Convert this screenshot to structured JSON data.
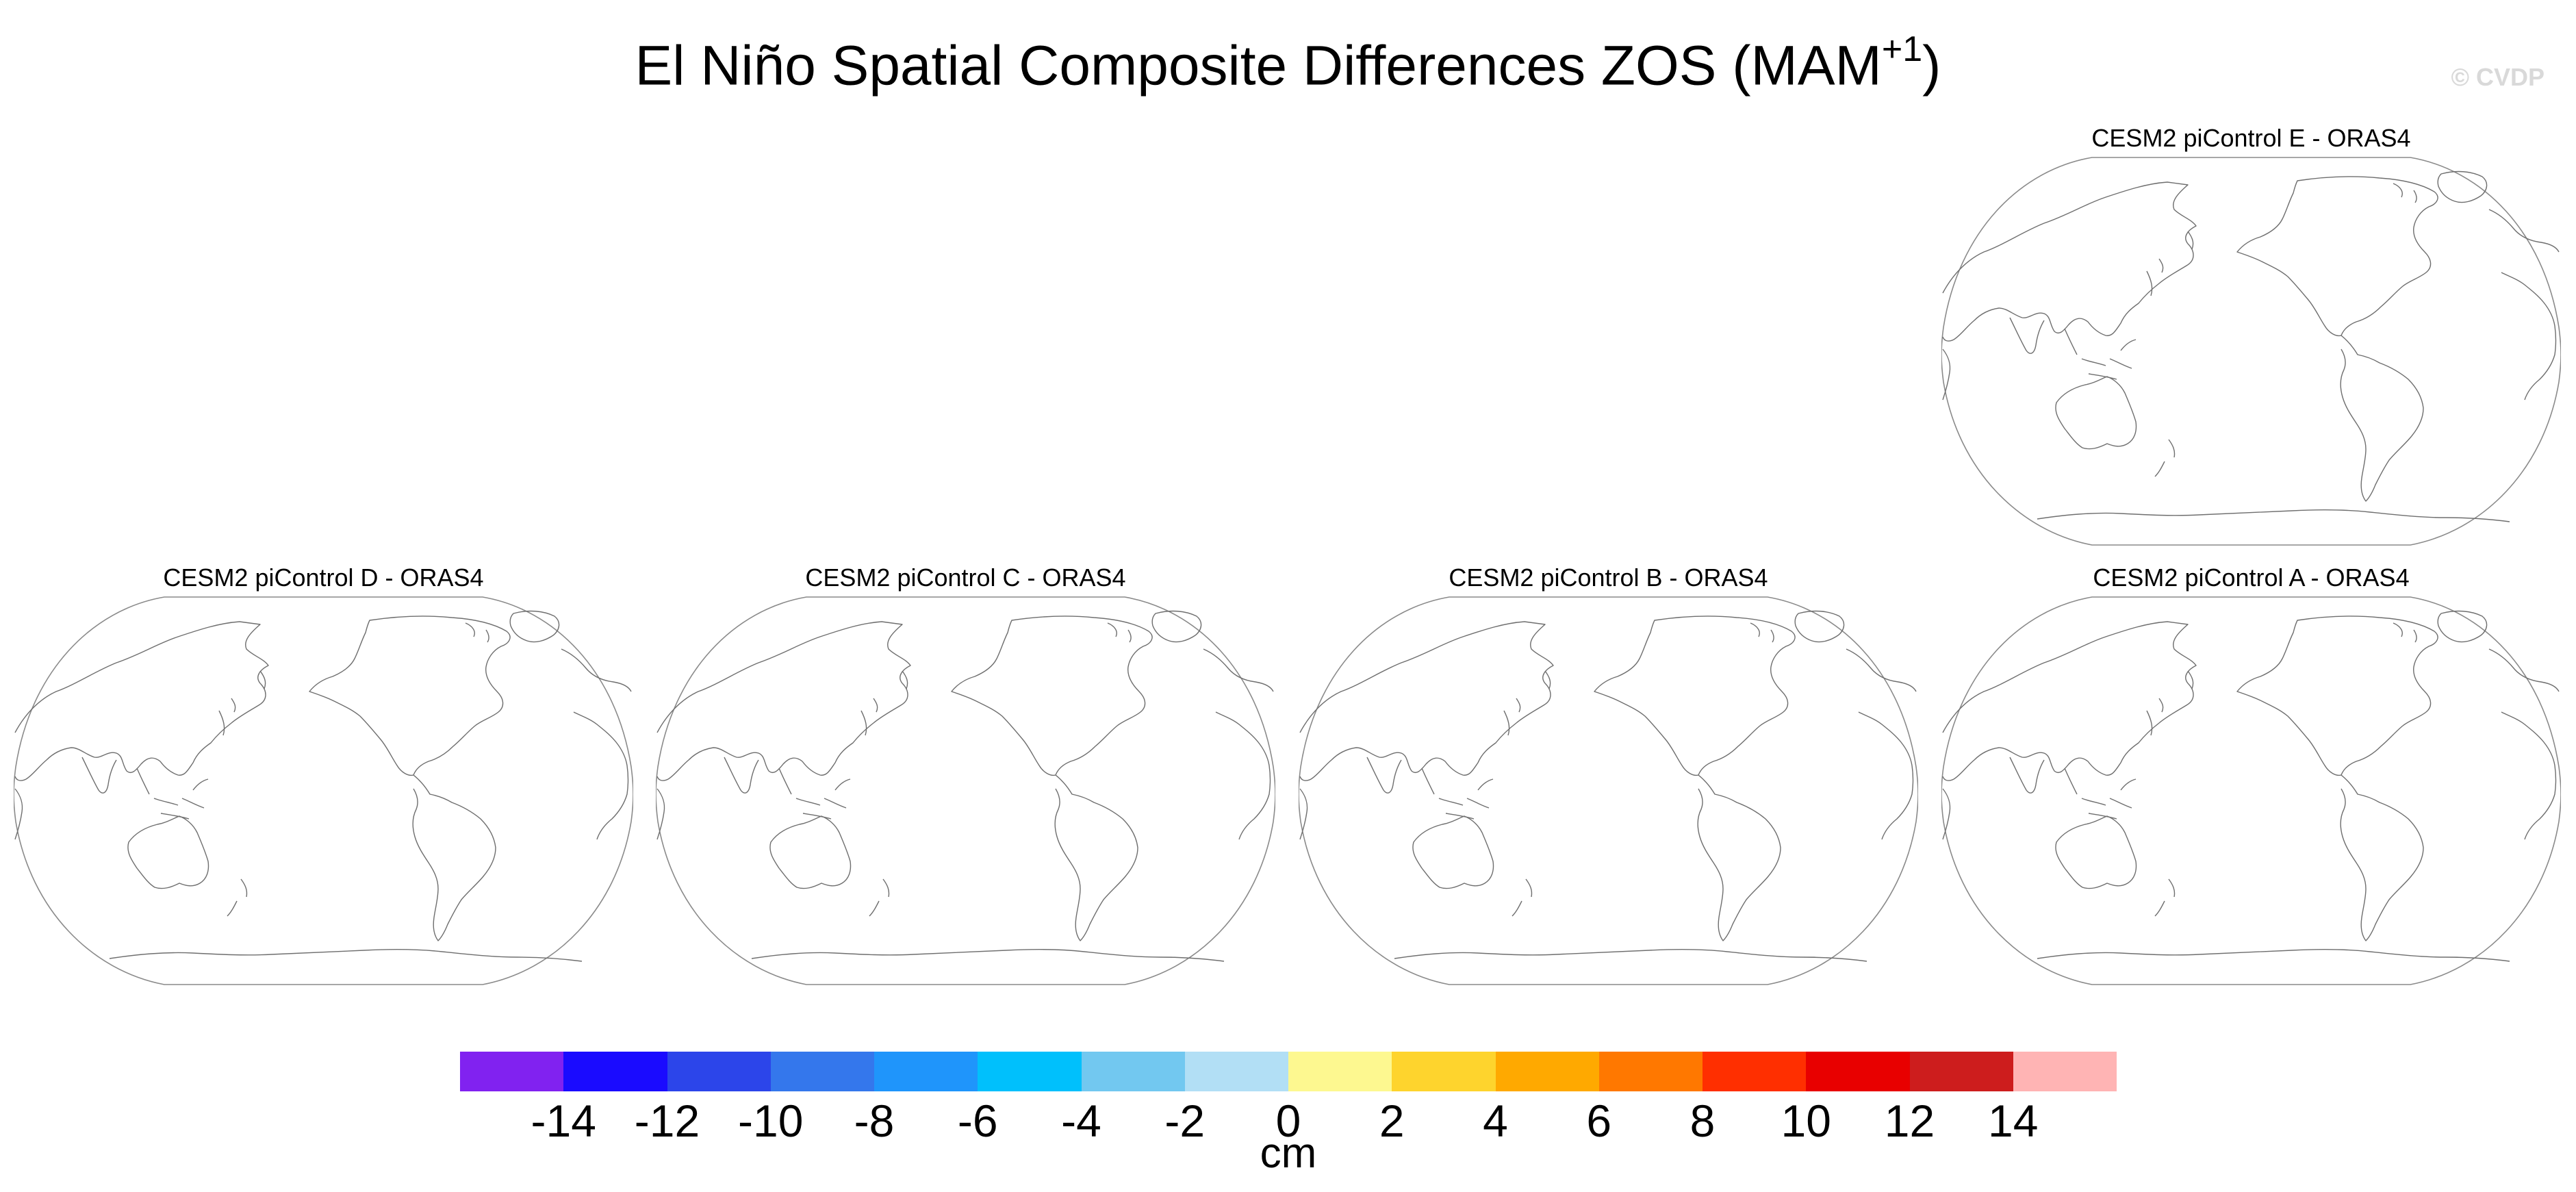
{
  "title": {
    "main": "El Niño Spatial Composite Differences ZOS (MAM",
    "superscript": "+1",
    "close": ")"
  },
  "watermark": "© CVDP",
  "panels": [
    {
      "label": "CESM2 piControl E - ORAS4"
    },
    {
      "label": "CESM2 piControl D - ORAS4"
    },
    {
      "label": "CESM2 piControl C - ORAS4"
    },
    {
      "label": "CESM2 piControl B - ORAS4"
    },
    {
      "label": "CESM2 piControl A - ORAS4"
    }
  ],
  "colorbar": {
    "unit": "cm",
    "ticks": [
      "-14",
      "-12",
      "-10",
      "-8",
      "-6",
      "-4",
      "-2",
      "0",
      "2",
      "4",
      "6",
      "8",
      "10",
      "12",
      "14"
    ],
    "colors": [
      "#8122f0",
      "#1a0bff",
      "#2c45ea",
      "#3477ec",
      "#1f95fb",
      "#00c0fc",
      "#72c8f0",
      "#b2dff5",
      "#fdf890",
      "#fed42d",
      "#ffa900",
      "#ff7800",
      "#ff2f00",
      "#e80000",
      "#cd1d1d",
      "#ffb4b4"
    ]
  },
  "colors": {
    "coastline": "#6e6e6e",
    "border": "#8a8a8a"
  }
}
